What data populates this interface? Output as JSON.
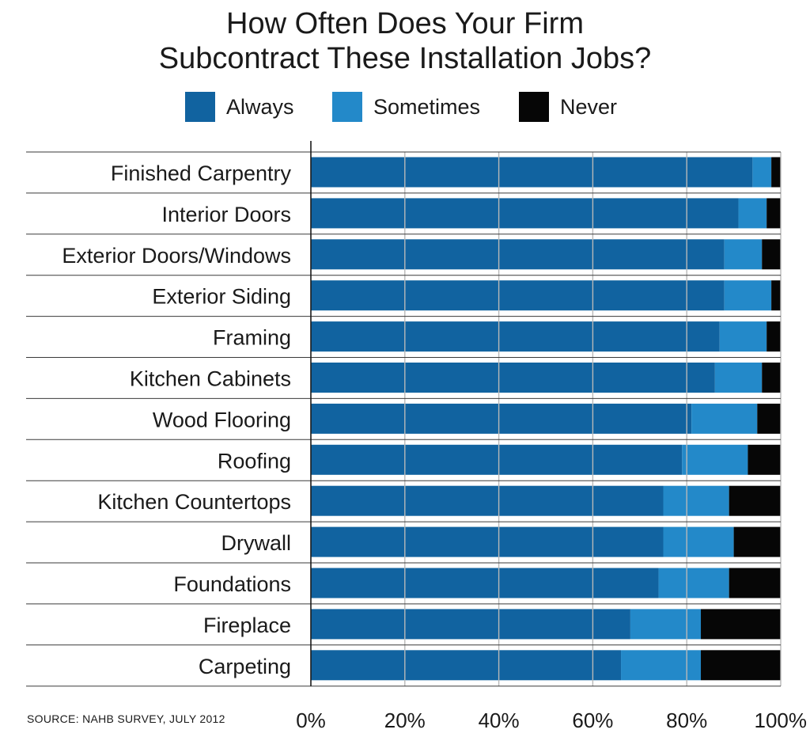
{
  "chart_data": {
    "type": "bar",
    "orientation": "horizontal",
    "stacked": true,
    "title_lines": [
      "How Often Does Your Firm",
      "Subcontract These Installation Jobs?"
    ],
    "categories": [
      "Finished Carpentry",
      "Interior Doors",
      "Exterior Doors/Windows",
      "Exterior Siding",
      "Framing",
      "Kitchen Cabinets",
      "Wood Flooring",
      "Roofing",
      "Kitchen Countertops",
      "Drywall",
      "Foundations",
      "Fireplace",
      "Carpeting"
    ],
    "series": [
      {
        "name": "Always",
        "color": "#1163a0",
        "values": [
          94,
          91,
          88,
          88,
          87,
          86,
          81,
          79,
          75,
          75,
          74,
          68,
          66
        ]
      },
      {
        "name": "Sometimes",
        "color": "#2389c9",
        "values": [
          4,
          6,
          8,
          10,
          10,
          10,
          14,
          14,
          14,
          15,
          15,
          15,
          17
        ]
      },
      {
        "name": "Never",
        "color": "#060606",
        "values": [
          2,
          3,
          4,
          2,
          3,
          4,
          5,
          7,
          11,
          10,
          11,
          17,
          17
        ]
      }
    ],
    "xlim": [
      0,
      100
    ],
    "x_ticks": [
      "0%",
      "20%",
      "40%",
      "60%",
      "80%",
      "100%"
    ],
    "x_tick_values": [
      0,
      20,
      40,
      60,
      80,
      100
    ],
    "grid": true,
    "legend_position": "top",
    "source": "SOURCE: NAHB SURVEY, JULY 2012"
  }
}
